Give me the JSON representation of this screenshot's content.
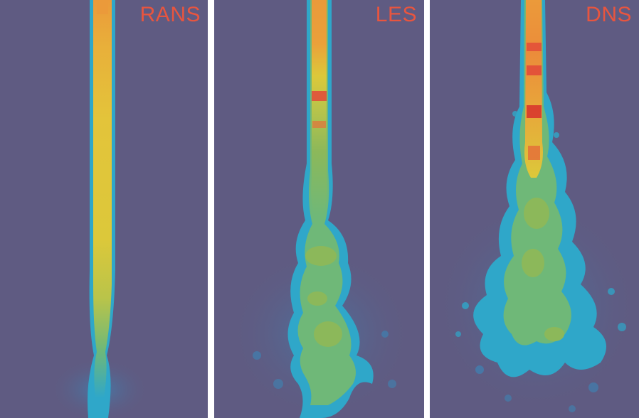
{
  "figure": {
    "panels": [
      {
        "id": "rans",
        "label": "RANS"
      },
      {
        "id": "les",
        "label": "LES"
      },
      {
        "id": "dns",
        "label": "DNS"
      }
    ],
    "colors": {
      "background": "#5f5b82",
      "label": "#e8553f",
      "core_yellow": "#e3c43a",
      "core_orange": "#eb9a3a",
      "hot_red": "#e2483a",
      "mid_green": "#8cb85a",
      "edge_cyan": "#2fa7c9",
      "outer_blue": "#3b86b8"
    }
  }
}
